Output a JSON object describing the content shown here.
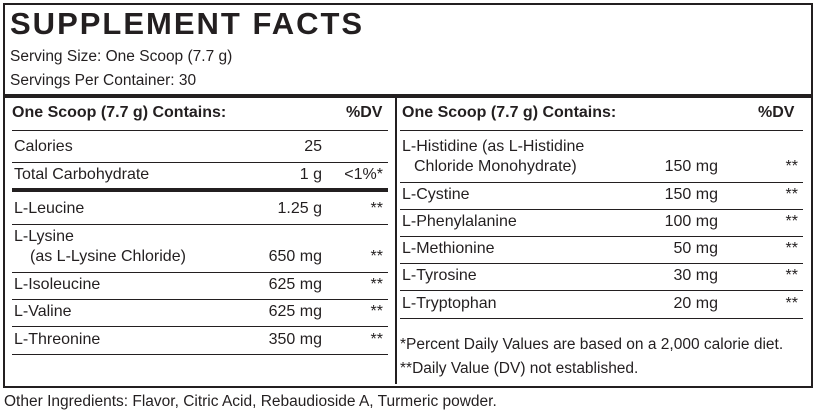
{
  "title": "SUPPLEMENT FACTS",
  "serving_size": "Serving Size: One Scoop (7.7 g)",
  "servings_per_container": "Servings Per Container: 30",
  "left": {
    "header": "One Scoop (7.7 g) Contains:",
    "dv_header": "%DV",
    "rows": [
      {
        "name": "Calories",
        "amount": "25",
        "dv": ""
      },
      {
        "name": "Total Carbohydrate",
        "amount": "1 g",
        "dv": "<1%*"
      },
      {
        "name": "L-Leucine",
        "amount": "1.25 g",
        "dv": "**"
      },
      {
        "name": "L-Lysine",
        "name2": "(as L-Lysine Chloride)",
        "amount": "650 mg",
        "dv": "**"
      },
      {
        "name": "L-Isoleucine",
        "amount": "625 mg",
        "dv": "**"
      },
      {
        "name": "L-Valine",
        "amount": "625 mg",
        "dv": "**"
      },
      {
        "name": "L-Threonine",
        "amount": "350 mg",
        "dv": "**"
      }
    ]
  },
  "right": {
    "header": "One Scoop (7.7 g) Contains:",
    "dv_header": "%DV",
    "rows": [
      {
        "name": "L-Histidine (as L-Histidine",
        "name2": "Chloride Monohydrate)",
        "amount": "150 mg",
        "dv": "**"
      },
      {
        "name": "L-Cystine",
        "amount": "150 mg",
        "dv": "**"
      },
      {
        "name": "L-Phenylalanine",
        "amount": "100 mg",
        "dv": "**"
      },
      {
        "name": "L-Methionine",
        "amount": "50 mg",
        "dv": "**"
      },
      {
        "name": "L-Tyrosine",
        "amount": "30 mg",
        "dv": "**"
      },
      {
        "name": "L-Tryptophan",
        "amount": "20 mg",
        "dv": "**"
      }
    ],
    "footnote1": "*Percent Daily Values are based on a 2,000 calorie diet.",
    "footnote2": "**Daily Value (DV) not established."
  },
  "other_ingredients": "Other Ingredients: Flavor, Citric Acid, Rebaudioside A, Turmeric powder."
}
